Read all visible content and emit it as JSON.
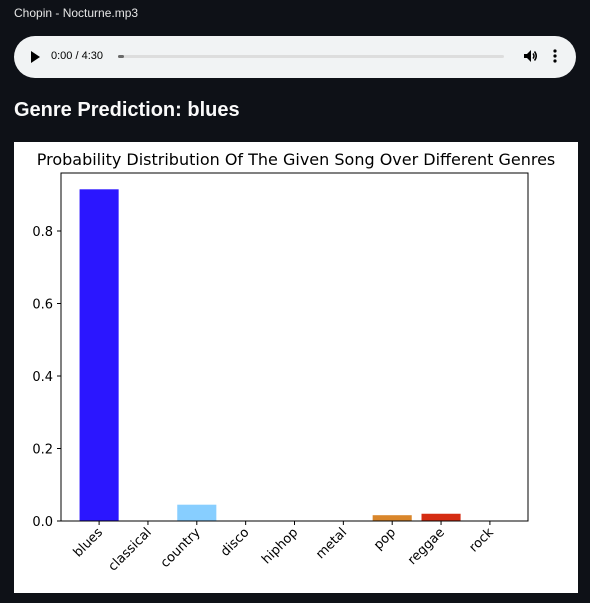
{
  "audio": {
    "file_name": "Chopin - Nocturne.mp3",
    "time_display": "0:00 / 4:30",
    "progress": 0.0
  },
  "header": {
    "title": "Genre Prediction: blues"
  },
  "icons": {
    "play": "play-icon",
    "volume": "volume-icon",
    "menu": "more-vertical-icon"
  },
  "chart_data": {
    "type": "bar",
    "title": "Probability Distribution Of The Given Song Over Different Genres",
    "xlabel": "",
    "ylabel": "",
    "categories": [
      "blues",
      "classical",
      "country",
      "disco",
      "hiphop",
      "metal",
      "pop",
      "reggae",
      "rock"
    ],
    "values": [
      0.915,
      0.0,
      0.045,
      0.0,
      0.0,
      0.0,
      0.016,
      0.02,
      0.0
    ],
    "colors": [
      "#2b16ff",
      "#6ba8ff",
      "#87ceff",
      "#b0e0ff",
      "#d4f0ff",
      "#ffd7b3",
      "#d9862b",
      "#d52c12",
      "#b01010"
    ],
    "yticks": [
      "0.0",
      "0.2",
      "0.4",
      "0.6",
      "0.8"
    ],
    "ylim": [
      0,
      0.96
    ],
    "grid": false,
    "legend": "none"
  }
}
